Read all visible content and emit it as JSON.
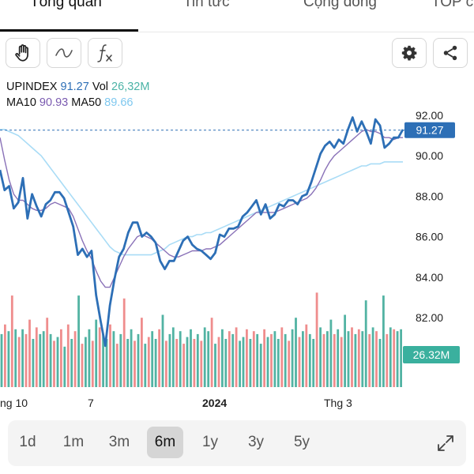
{
  "tabs": [
    {
      "label": "Tổng quan",
      "active": true
    },
    {
      "label": "Tin tức",
      "active": false
    },
    {
      "label": "Cộng đồng",
      "active": false
    },
    {
      "label": "TOP c",
      "active": false
    }
  ],
  "toolbar": {
    "left_icons": [
      "hand-icon",
      "line-icon",
      "function-icon"
    ],
    "right_icons": [
      "gear-icon",
      "share-icon"
    ]
  },
  "legend": {
    "symbol": "UPINDEX",
    "price": "91.27",
    "vol_label": "Vol",
    "vol_value": "26,32M",
    "ma10_label": "MA10",
    "ma10_value": "90.93",
    "ma50_label": "MA50",
    "ma50_value": "89.66"
  },
  "price_tag": "91.27",
  "volume_tag": "26.32M",
  "colors": {
    "price_line": "#2d6fb6",
    "ma10": "#8a72b8",
    "ma50": "#a9dcf6",
    "vol_up": "#52b3a3",
    "vol_down": "#ef8d8d",
    "tag_price": "#2d6fb6",
    "tag_volume": "#3ab09e"
  },
  "chart_data": {
    "type": "line",
    "ylim": [
      80.6,
      92.4
    ],
    "y_ticks": [
      "92.00",
      "90.00",
      "88.00",
      "86.00",
      "84.00",
      "82.00"
    ],
    "x_ticks": [
      "ng 10",
      "7",
      "2024",
      "Thg 3"
    ],
    "series": [
      {
        "name": "UPINDEX",
        "values": [
          89.3,
          88.3,
          88.5,
          87.4,
          87.7,
          88.9,
          86.9,
          88.1,
          87.5,
          87.0,
          87.6,
          87.8,
          88.2,
          88.2,
          87.9,
          87.2,
          86.5,
          85.1,
          85.4,
          85.0,
          85.3,
          83.1,
          81.8,
          80.6,
          82.6,
          83.9,
          85.0,
          85.4,
          86.2,
          86.7,
          86.7,
          86.0,
          86.2,
          86.0,
          85.7,
          84.8,
          84.4,
          84.8,
          84.8,
          85.3,
          85.8,
          86.0,
          85.6,
          85.4,
          85.3,
          85.1,
          84.9,
          85.2,
          86.1,
          86.0,
          86.4,
          86.4,
          86.5,
          87.0,
          87.2,
          87.5,
          87.8,
          87.1,
          87.6,
          86.9,
          87.1,
          87.6,
          87.5,
          87.8,
          87.8,
          87.6,
          88.0,
          88.1,
          88.7,
          89.4,
          90.1,
          90.5,
          90.7,
          90.4,
          90.8,
          90.6,
          91.3,
          91.9,
          91.2,
          91.7,
          91.2,
          90.6,
          91.8,
          91.5,
          90.4,
          90.6,
          90.9,
          90.9,
          91.3
        ]
      },
      {
        "name": "MA10",
        "values": [
          90.9,
          89.8,
          88.8,
          88.1,
          87.8,
          87.8,
          87.6,
          87.4,
          87.3,
          87.3,
          87.4,
          87.6,
          87.7,
          87.6,
          87.5,
          87.4,
          87.0,
          86.4,
          85.8,
          85.3,
          84.9,
          84.3,
          83.8,
          83.5,
          83.5,
          84.0,
          84.5,
          85.0,
          85.4,
          85.7,
          86.0,
          86.1,
          86.0,
          85.9,
          85.7,
          85.5,
          85.3,
          85.1,
          85.0,
          85.0,
          85.1,
          85.2,
          85.3,
          85.3,
          85.3,
          85.4,
          85.4,
          85.5,
          85.6,
          85.8,
          86.0,
          86.2,
          86.4,
          86.6,
          86.8,
          87.0,
          87.2,
          87.2,
          87.2,
          87.2,
          87.2,
          87.3,
          87.4,
          87.5,
          87.6,
          87.7,
          87.8,
          87.9,
          88.1,
          88.4,
          88.8,
          89.3,
          89.7,
          90.0,
          90.2,
          90.4,
          90.6,
          90.8,
          91.0,
          91.2,
          91.3,
          91.2,
          91.2,
          91.1,
          90.9,
          90.9,
          90.8,
          90.9,
          90.9
        ]
      },
      {
        "name": "MA50",
        "values": [
          91.3,
          91.3,
          91.2,
          91.1,
          91.0,
          90.8,
          90.6,
          90.4,
          90.2,
          90.0,
          89.7,
          89.4,
          89.1,
          88.8,
          88.5,
          88.2,
          87.9,
          87.6,
          87.3,
          87.0,
          86.7,
          86.4,
          86.1,
          85.8,
          85.5,
          85.3,
          85.2,
          85.1,
          85.1,
          85.1,
          85.1,
          85.1,
          85.1,
          85.1,
          85.2,
          85.3,
          85.4,
          85.6,
          85.7,
          85.8,
          85.9,
          86.0,
          86.0,
          86.1,
          86.1,
          86.2,
          86.2,
          86.3,
          86.4,
          86.5,
          86.6,
          86.7,
          86.8,
          86.9,
          87.0,
          87.1,
          87.2,
          87.3,
          87.4,
          87.5,
          87.6,
          87.7,
          87.8,
          87.9,
          88.0,
          88.1,
          88.2,
          88.3,
          88.4,
          88.5,
          88.6,
          88.7,
          88.8,
          88.9,
          89.0,
          89.1,
          89.2,
          89.3,
          89.4,
          89.5,
          89.5,
          89.6,
          89.6,
          89.6,
          89.7,
          89.7,
          89.7,
          89.7,
          89.7
        ]
      }
    ],
    "volume_up": [
      true,
      false,
      true,
      false,
      true,
      false,
      true,
      false,
      false,
      true,
      false,
      true,
      true,
      false,
      true,
      false,
      true,
      false,
      true,
      false,
      true,
      false,
      true,
      false,
      true,
      true,
      false,
      true,
      false,
      true,
      true,
      false,
      true,
      false,
      true,
      false,
      true,
      true,
      false,
      true,
      false,
      true,
      false,
      true,
      true,
      false,
      true,
      false,
      true,
      true,
      false,
      true,
      false,
      true,
      true,
      false,
      true,
      false,
      true,
      true,
      false,
      true,
      false,
      true,
      true,
      false,
      true,
      false,
      true,
      true,
      false,
      true,
      false,
      true,
      true,
      false,
      true,
      false,
      true,
      true,
      false,
      true,
      false,
      true,
      true,
      false,
      true,
      false,
      true,
      true,
      false,
      true,
      false,
      true,
      true,
      false,
      true,
      false,
      true,
      true,
      false,
      true,
      false,
      true,
      true,
      false,
      true,
      false,
      true,
      true,
      false,
      true,
      false,
      true,
      true
    ],
    "volume_rel": [
      0.55,
      0.65,
      0.58,
      0.95,
      0.6,
      0.52,
      0.6,
      0.55,
      0.7,
      0.5,
      0.62,
      0.55,
      0.58,
      0.72,
      0.55,
      0.48,
      0.52,
      0.6,
      0.42,
      0.65,
      0.5,
      0.58,
      0.95,
      0.45,
      0.52,
      0.6,
      0.48,
      0.7,
      0.62,
      0.55,
      0.5,
      0.65,
      0.58,
      0.45,
      0.55,
      0.92,
      0.5,
      0.6,
      0.48,
      0.55,
      0.72,
      0.45,
      0.52,
      0.58,
      0.5,
      0.6,
      0.75,
      0.48,
      0.55,
      0.62,
      0.5,
      0.58,
      0.45,
      0.52,
      0.6,
      0.5,
      0.55,
      0.48,
      0.62,
      0.58,
      0.72,
      0.45,
      0.52,
      0.6,
      0.5,
      0.58,
      0.55,
      0.62,
      0.48,
      0.52,
      0.6,
      0.5,
      0.58,
      0.55,
      0.45,
      0.6,
      0.52,
      0.55,
      0.58,
      0.5,
      0.62,
      0.55,
      0.48,
      0.6,
      0.72,
      0.52,
      0.58,
      0.65,
      0.55,
      0.5,
      0.98,
      0.62,
      0.55,
      0.58,
      0.7,
      0.55,
      0.6,
      0.52,
      0.75,
      0.58,
      0.62,
      0.55,
      0.6,
      0.58,
      0.9,
      0.55,
      0.62,
      0.58,
      0.5,
      0.95,
      0.55,
      0.62,
      0.6,
      0.58,
      0.6
    ]
  },
  "ranges": [
    {
      "label": "1d",
      "active": false
    },
    {
      "label": "1m",
      "active": false
    },
    {
      "label": "3m",
      "active": false
    },
    {
      "label": "6m",
      "active": true
    },
    {
      "label": "1y",
      "active": false
    },
    {
      "label": "3y",
      "active": false
    },
    {
      "label": "5y",
      "active": false
    }
  ],
  "expand_icon": "expand-icon"
}
